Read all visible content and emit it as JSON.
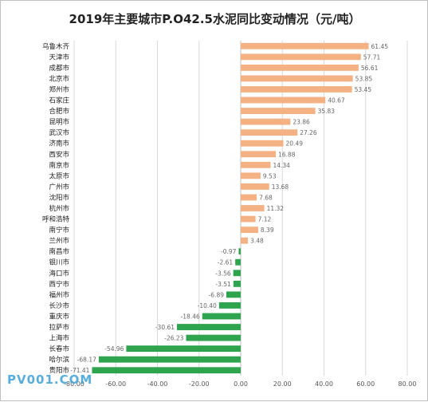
{
  "chart_data": {
    "type": "bar",
    "orientation": "horizontal",
    "title": "2019年主要城市P.O42.5水泥同比变动情况（元/吨）",
    "categories": [
      "乌鲁木齐",
      "天津市",
      "成都市",
      "北京市",
      "郑州市",
      "石家庄",
      "合肥市",
      "昆明市",
      "武汉市",
      "济南市",
      "西安市",
      "南京市",
      "太原市",
      "广州市",
      "沈阳市",
      "杭州市",
      "呼和浩特",
      "南宁市",
      "兰州市",
      "南昌市",
      "银川市",
      "海口市",
      "西宁市",
      "福州市",
      "长沙市",
      "重庆市",
      "拉萨市",
      "上海市",
      "长春市",
      "哈尔滨",
      "贵阳市"
    ],
    "values": [
      61.45,
      57.71,
      56.61,
      53.85,
      53.45,
      40.67,
      35.83,
      23.86,
      27.26,
      20.49,
      16.88,
      14.34,
      9.53,
      13.68,
      7.68,
      11.32,
      7.12,
      8.39,
      3.48,
      -0.97,
      -2.61,
      -3.56,
      -3.51,
      -6.89,
      -10.4,
      -18.46,
      -30.61,
      -26.23,
      -54.96,
      -68.17,
      -71.41
    ],
    "data_labels": [
      "61.45",
      "57.71",
      "56.61",
      "53.85",
      "53.45",
      "40.67",
      "35.83",
      "23.86",
      "27.26",
      "20.49",
      "16.88",
      "14.34",
      "9.53",
      "13.68",
      "7.68",
      "11.32",
      "7.12",
      "8.39",
      "3.48",
      "-0.97",
      "-2.61",
      "-3.56",
      "-3.51",
      "-6.89",
      "-10.40",
      "-18.46",
      "-30.61",
      "-26.23",
      "-54.96",
      "-68.17",
      "-71.41"
    ],
    "xlim": [
      -80,
      80
    ],
    "xticks": [
      -80,
      -60,
      -40,
      -20,
      0,
      20,
      40,
      60,
      80
    ],
    "xtick_labels": [
      "-80.00",
      "-60.00",
      "-40.00",
      "-20.00",
      "0.00",
      "20.00",
      "40.00",
      "60.00",
      "80.00"
    ],
    "positive_color": "#f4b183",
    "negative_color": "#2ea44f",
    "grid": true,
    "legend": "none"
  },
  "watermark": "PV001.COM"
}
